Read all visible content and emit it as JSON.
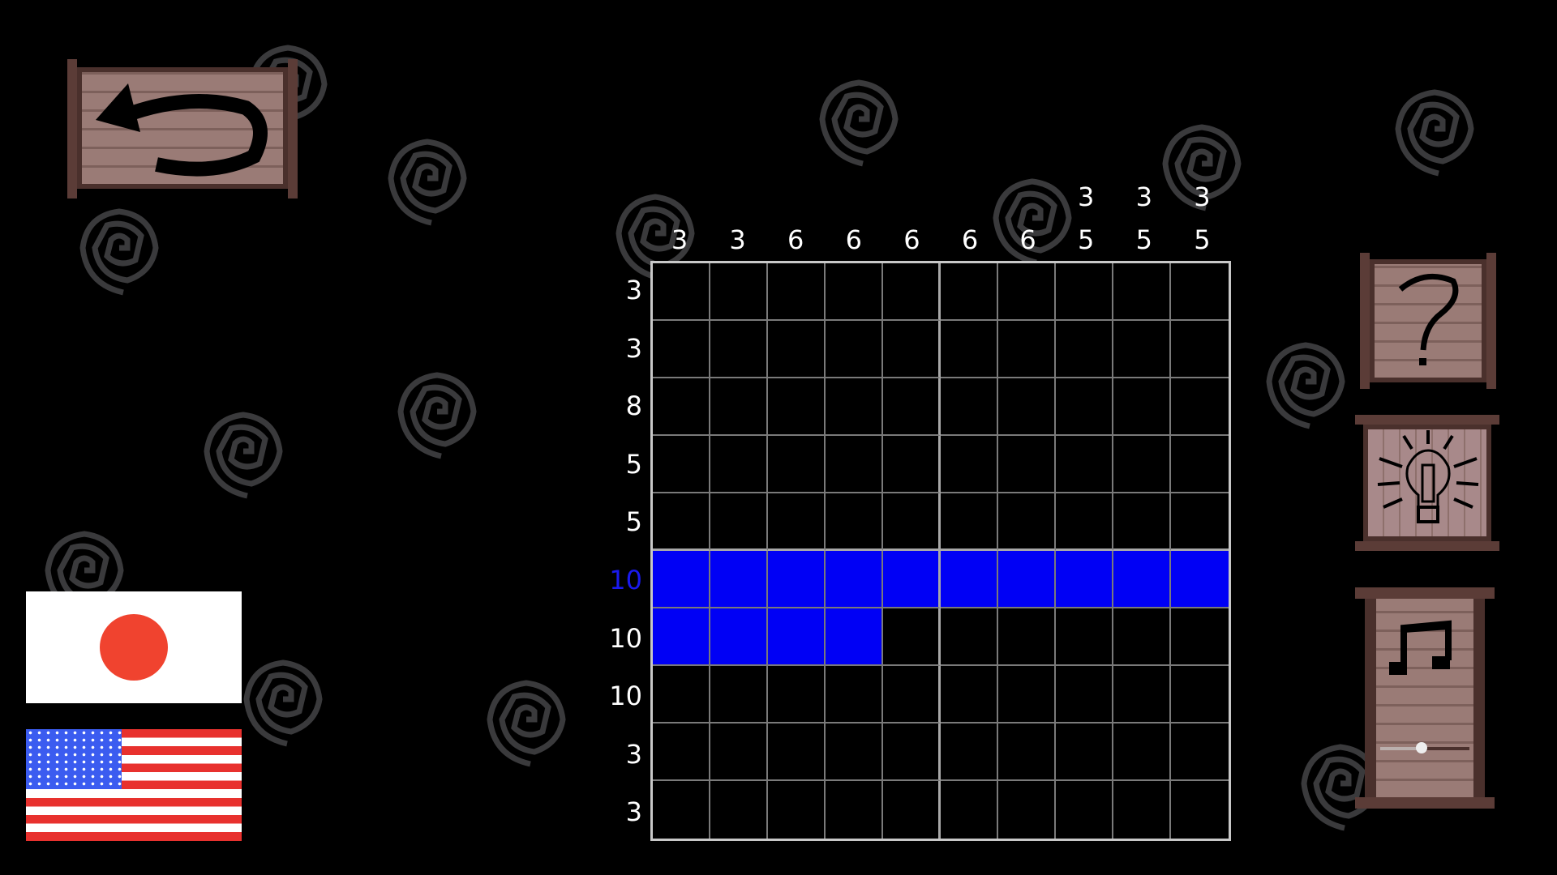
{
  "game": {
    "column_clues": [
      [
        "3"
      ],
      [
        "3"
      ],
      [
        "6"
      ],
      [
        "6"
      ],
      [
        "6"
      ],
      [
        "6"
      ],
      [
        "6"
      ],
      [
        "3",
        "5"
      ],
      [
        "3",
        "5"
      ],
      [
        "3",
        "5"
      ]
    ],
    "row_clues": [
      "3",
      "3",
      "8",
      "5",
      "5",
      "10",
      "10",
      "10",
      "3",
      "3"
    ],
    "active_row": 5,
    "filled": [
      [
        0,
        0,
        0,
        0,
        0,
        0,
        0,
        0,
        0,
        0
      ],
      [
        0,
        0,
        0,
        0,
        0,
        0,
        0,
        0,
        0,
        0
      ],
      [
        0,
        0,
        0,
        0,
        0,
        0,
        0,
        0,
        0,
        0
      ],
      [
        0,
        0,
        0,
        0,
        0,
        0,
        0,
        0,
        0,
        0
      ],
      [
        0,
        0,
        0,
        0,
        0,
        0,
        0,
        0,
        0,
        0
      ],
      [
        1,
        1,
        1,
        1,
        1,
        1,
        1,
        1,
        1,
        1
      ],
      [
        1,
        1,
        1,
        1,
        0,
        0,
        0,
        0,
        0,
        0
      ],
      [
        0,
        0,
        0,
        0,
        0,
        0,
        0,
        0,
        0,
        0
      ],
      [
        0,
        0,
        0,
        0,
        0,
        0,
        0,
        0,
        0,
        0
      ],
      [
        0,
        0,
        0,
        0,
        0,
        0,
        0,
        0,
        0,
        0
      ]
    ],
    "fill_color": "#0000f5",
    "active_clue_color": "#1a1aee"
  },
  "controls": {
    "back_icon": "undo-arrow-icon",
    "help_icon": "question-mark-icon",
    "hint_icon": "lightbulb-icon",
    "music_icon": "music-note-icon",
    "music_volume_percent": 46,
    "languages": [
      "japanese-flag",
      "us-flag"
    ]
  }
}
